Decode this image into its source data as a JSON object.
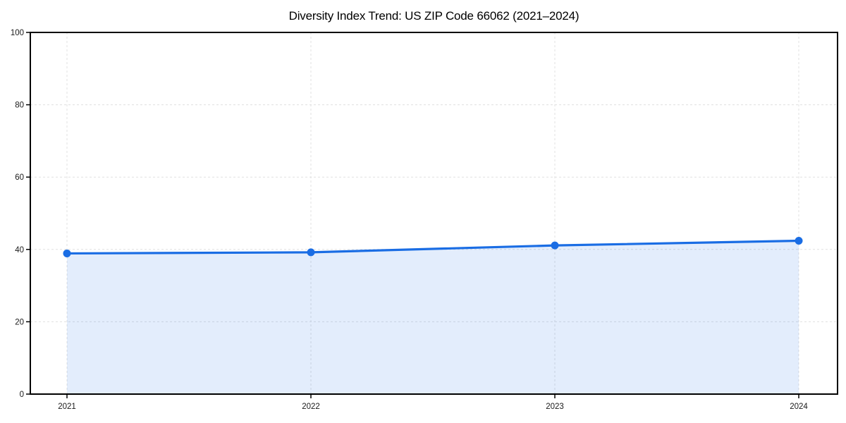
{
  "chart_data": {
    "type": "line",
    "title": "Diversity Index Trend: US ZIP Code 66062 (2021–2024)",
    "categories": [
      "2021",
      "2022",
      "2023",
      "2024"
    ],
    "series": [
      {
        "name": "Diversity Index",
        "values": [
          38.9,
          39.2,
          41.1,
          42.4
        ]
      }
    ],
    "xlabel": "",
    "ylabel": "",
    "ylim": [
      0,
      100
    ],
    "yticks": [
      0,
      20,
      40,
      60,
      80,
      100
    ],
    "grid": "dashed",
    "legend_position": "none",
    "area_fill": true,
    "marker": "circle",
    "colors": {
      "line": "#1a6de4",
      "marker": "#1a6de4",
      "fill": "rgba(26,109,228,0.12)",
      "grid": "#e0e0e0",
      "axis": "#000000",
      "tick_text": "#1a1a1a"
    }
  }
}
